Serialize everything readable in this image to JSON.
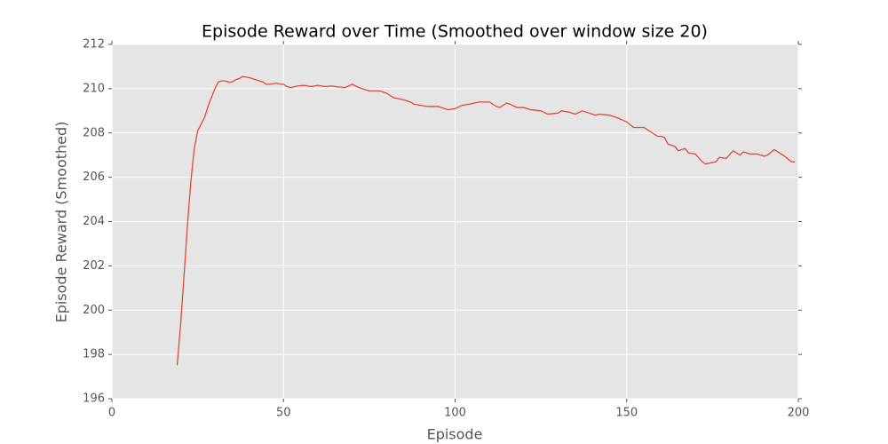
{
  "chart_data": {
    "type": "line",
    "title": "Episode Reward over Time (Smoothed over window size 20)",
    "x_label": "Episode",
    "y_label": "Episode Reward (Smoothed)",
    "xlim": [
      0,
      200
    ],
    "ylim": [
      196,
      212
    ],
    "xticks": [
      0,
      50,
      100,
      150,
      200
    ],
    "yticks": [
      196,
      198,
      200,
      202,
      204,
      206,
      208,
      210,
      212
    ],
    "grid": true,
    "x": [
      19,
      20,
      21,
      22,
      23,
      24,
      25,
      26,
      27,
      28,
      29,
      30,
      31,
      32,
      33,
      34,
      35,
      36,
      37,
      38,
      40,
      42,
      44,
      45,
      46,
      48,
      49,
      50,
      51,
      52,
      54,
      56,
      58,
      59,
      60,
      62,
      64,
      66,
      68,
      70,
      72,
      75,
      77,
      78,
      80,
      82,
      85,
      87,
      88,
      90,
      92,
      95,
      98,
      100,
      102,
      104,
      107,
      110,
      112,
      113,
      115,
      116,
      118,
      120,
      122,
      125,
      127,
      130,
      131,
      133,
      135,
      137,
      139,
      141,
      142,
      145,
      147,
      150,
      152,
      155,
      157,
      159,
      160,
      161,
      162,
      164,
      165,
      167,
      168,
      170,
      172,
      173,
      176,
      177,
      179,
      181,
      183,
      184,
      186,
      188,
      190,
      191,
      193,
      195,
      196,
      198,
      199
    ],
    "series": [
      {
        "name": "Episode Reward (Smoothed)",
        "color": "#e24a33",
        "values": [
          197.5,
          199.3,
          201.5,
          203.8,
          205.8,
          207.3,
          208.1,
          208.4,
          208.7,
          209.2,
          209.6,
          210.0,
          210.3,
          210.35,
          210.35,
          210.3,
          210.3,
          210.4,
          210.45,
          210.55,
          210.5,
          210.4,
          210.3,
          210.2,
          210.2,
          210.25,
          210.2,
          210.2,
          210.1,
          210.05,
          210.12,
          210.15,
          210.1,
          210.12,
          210.15,
          210.1,
          210.12,
          210.08,
          210.05,
          210.2,
          210.05,
          209.9,
          209.9,
          209.9,
          209.8,
          209.6,
          209.5,
          209.4,
          209.3,
          209.25,
          209.2,
          209.2,
          209.05,
          209.1,
          209.25,
          209.3,
          209.4,
          209.4,
          209.2,
          209.15,
          209.35,
          209.3,
          209.15,
          209.15,
          209.05,
          209.0,
          208.85,
          208.9,
          209.0,
          208.95,
          208.85,
          209.0,
          208.9,
          208.8,
          208.85,
          208.8,
          208.7,
          208.5,
          208.25,
          208.25,
          208.05,
          207.85,
          207.85,
          207.8,
          207.5,
          207.4,
          207.2,
          207.3,
          207.1,
          207.05,
          206.7,
          206.6,
          206.7,
          206.9,
          206.85,
          207.2,
          207.0,
          207.15,
          207.05,
          207.05,
          206.95,
          207.0,
          207.25,
          207.05,
          206.95,
          206.7,
          206.7
        ]
      }
    ]
  }
}
